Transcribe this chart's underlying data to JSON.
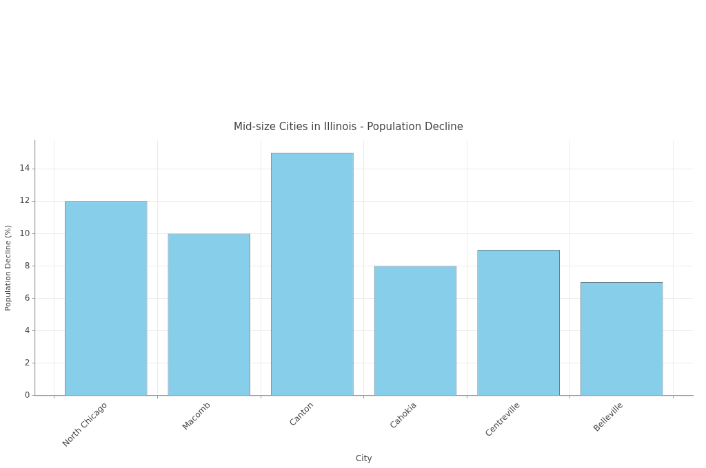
{
  "chart_data": {
    "type": "bar",
    "title": "Mid-size Cities in Illinois - Population Decline",
    "xlabel": "City",
    "ylabel": "Population Decline (%)",
    "categories": [
      "North Chicago",
      "Macomb",
      "Canton",
      "Cahokia",
      "Centreville",
      "Belleville"
    ],
    "values": [
      12,
      10,
      15,
      8,
      9,
      7
    ],
    "color": "#87ceeb",
    "ylim": [
      0,
      15.75
    ],
    "yticks": [
      0,
      2,
      4,
      6,
      8,
      10,
      12,
      14
    ],
    "grid": true
  }
}
